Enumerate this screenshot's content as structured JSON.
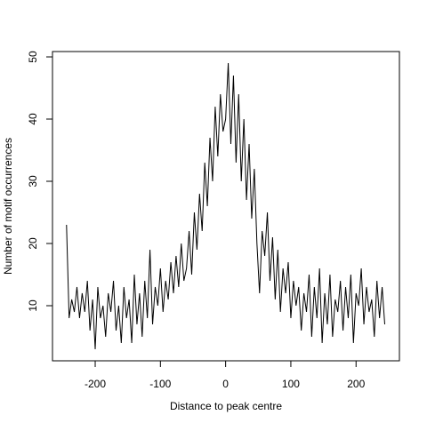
{
  "chart_data": {
    "type": "line",
    "xlabel": "Distance to peak centre",
    "ylabel": "Number of motif occurrences",
    "x": [
      -244,
      -240,
      -236,
      -232,
      -228,
      -224,
      -220,
      -216,
      -212,
      -208,
      -204,
      -200,
      -196,
      -192,
      -188,
      -184,
      -180,
      -176,
      -172,
      -168,
      -164,
      -160,
      -156,
      -152,
      -148,
      -144,
      -140,
      -136,
      -132,
      -128,
      -124,
      -120,
      -116,
      -112,
      -108,
      -104,
      -100,
      -96,
      -92,
      -88,
      -84,
      -80,
      -76,
      -72,
      -68,
      -64,
      -60,
      -56,
      -52,
      -48,
      -44,
      -40,
      -36,
      -32,
      -28,
      -24,
      -20,
      -16,
      -12,
      -8,
      -4,
      0,
      4,
      8,
      12,
      16,
      20,
      24,
      28,
      32,
      36,
      40,
      44,
      48,
      52,
      56,
      60,
      64,
      68,
      72,
      76,
      80,
      84,
      88,
      92,
      96,
      100,
      104,
      108,
      112,
      116,
      120,
      124,
      128,
      132,
      136,
      140,
      144,
      148,
      152,
      156,
      160,
      164,
      168,
      172,
      176,
      180,
      184,
      188,
      192,
      196,
      200,
      204,
      208,
      212,
      216,
      220,
      224,
      228,
      232,
      236,
      240,
      244
    ],
    "series": [
      {
        "color": "#000000",
        "values": [
          23,
          8,
          11,
          9,
          13,
          8,
          12,
          9,
          14,
          6,
          11,
          3,
          13,
          8,
          10,
          5,
          12,
          9,
          14,
          6,
          10,
          4,
          13,
          8,
          11,
          4,
          15,
          7,
          12,
          5,
          14,
          8,
          19,
          7,
          13,
          10,
          16,
          9,
          14,
          11,
          17,
          12,
          18,
          13,
          20,
          14,
          16,
          22,
          15,
          25,
          19,
          28,
          22,
          33,
          26,
          37,
          30,
          42,
          34,
          44,
          38,
          40,
          49,
          36,
          47,
          33,
          44,
          30,
          40,
          27,
          36,
          24,
          32,
          20,
          12,
          22,
          18,
          25,
          14,
          21,
          11,
          19,
          9,
          16,
          12,
          17,
          8,
          14,
          10,
          13,
          6,
          12,
          9,
          15,
          5,
          13,
          8,
          16,
          4,
          12,
          7,
          15,
          5,
          11,
          9,
          14,
          6,
          13,
          8,
          15,
          4,
          12,
          10,
          16,
          7,
          13,
          9,
          11,
          5,
          14,
          8,
          13,
          7
        ]
      }
    ],
    "xlim": [
      -265.5,
      266.5
    ],
    "ylim": [
      1.14,
      50.86
    ],
    "xticks": [
      -200,
      -100,
      0,
      100,
      200
    ],
    "yticks": [
      10,
      20,
      30,
      40,
      50
    ]
  }
}
